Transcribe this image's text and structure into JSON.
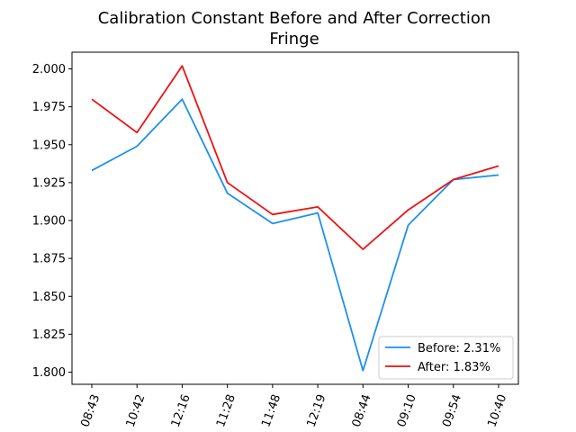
{
  "chart_data": {
    "type": "line",
    "title": "Calibration Constant Before and After Correction",
    "subtitle": "Fringe",
    "xlabel": "",
    "ylabel": "",
    "categories": [
      "08:43",
      "10:42",
      "12:16",
      "11:28",
      "11:48",
      "12:19",
      "08:44",
      "09:10",
      "09:54",
      "10:40"
    ],
    "series": [
      {
        "name": "Before: 2.31%",
        "color": "#1f8ff0",
        "values": [
          1.933,
          1.949,
          1.98,
          1.918,
          1.898,
          1.905,
          1.801,
          1.897,
          1.927,
          1.93
        ]
      },
      {
        "name": "After: 1.83%",
        "color": "#ee1111",
        "values": [
          1.98,
          1.958,
          2.002,
          1.925,
          1.904,
          1.909,
          1.881,
          1.907,
          1.927,
          1.936
        ]
      }
    ],
    "ylim": [
      1.792,
      2.011
    ],
    "yticks": [
      "1.800",
      "1.825",
      "1.850",
      "1.875",
      "1.900",
      "1.925",
      "1.950",
      "1.975",
      "2.000"
    ],
    "grid": false,
    "legend_position": "bottom-right"
  }
}
